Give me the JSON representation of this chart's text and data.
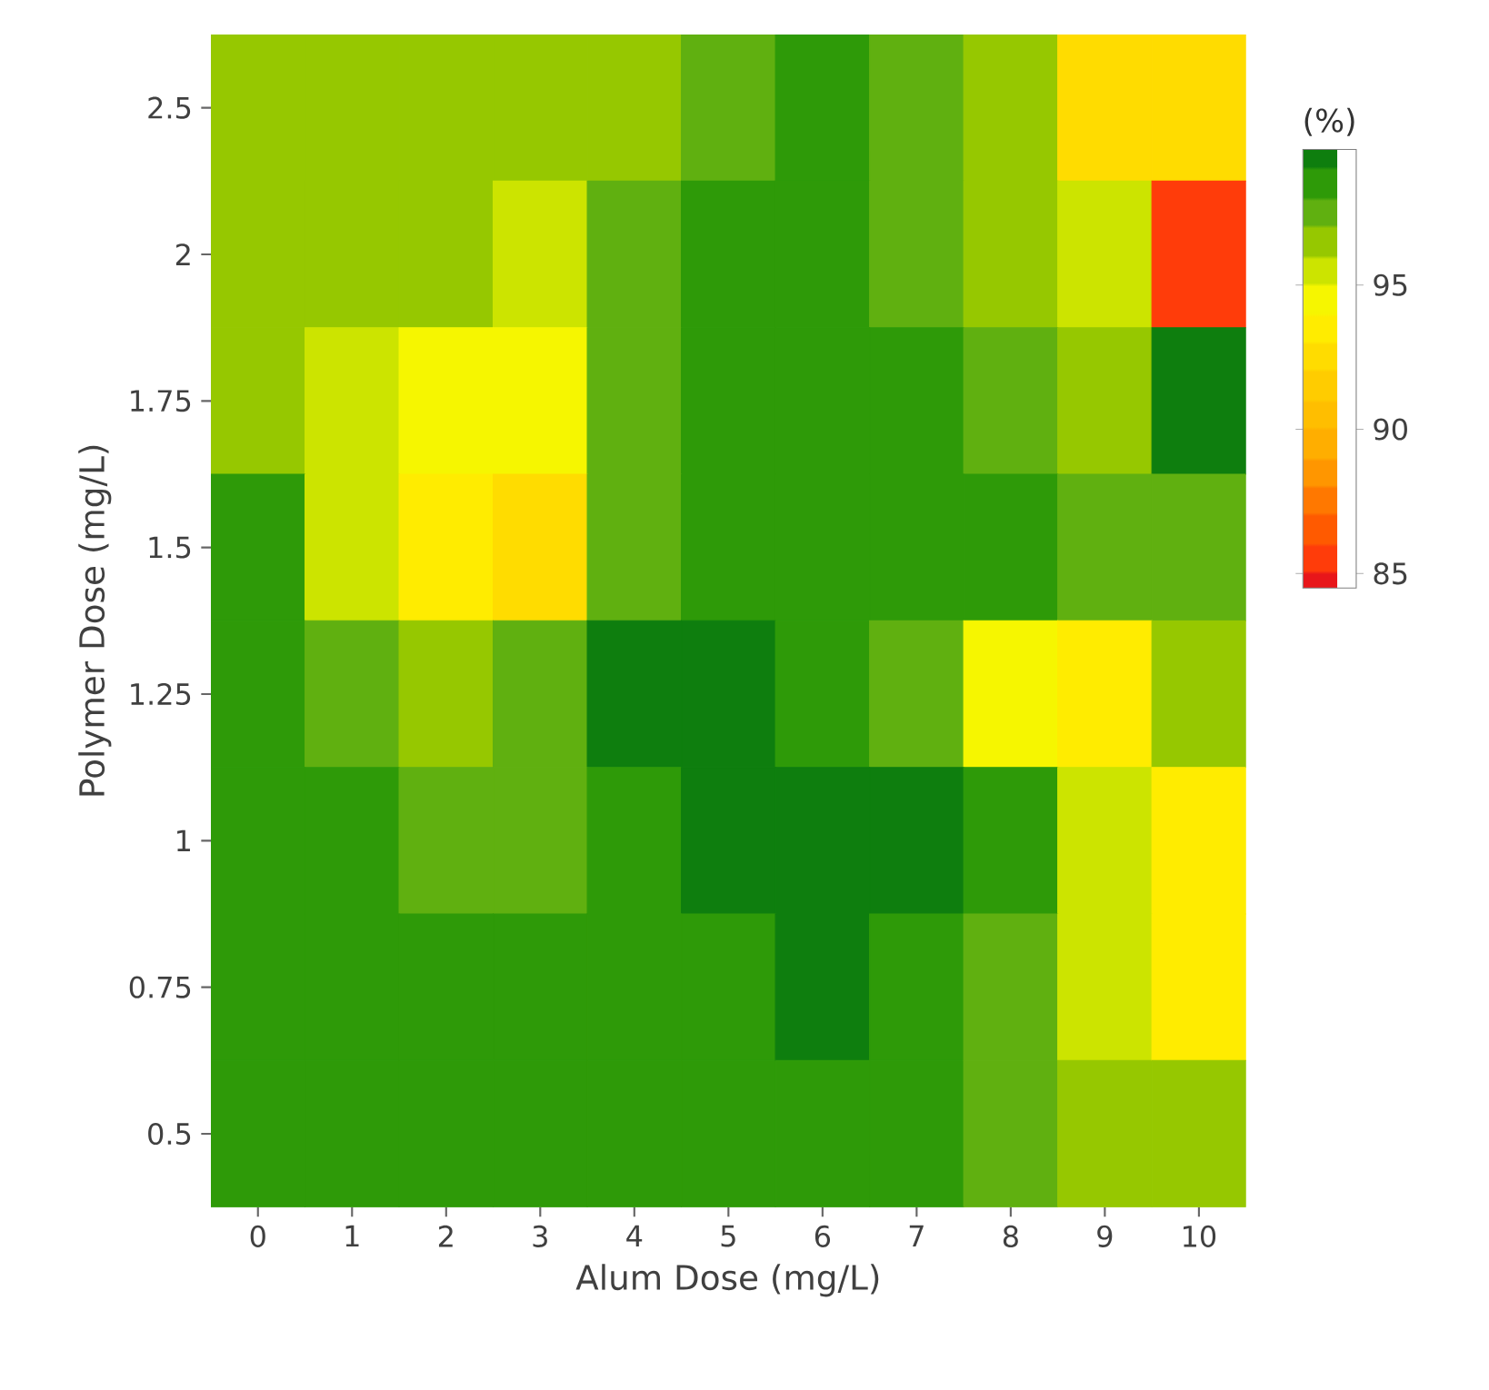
{
  "chart_data": {
    "type": "heatmap",
    "xlabel": "Alum Dose (mg/L)",
    "ylabel": "Polymer Dose (mg/L)",
    "clabel": "(%)",
    "categories": [
      "0",
      "1",
      "2",
      "3",
      "4",
      "5",
      "6",
      "7",
      "8",
      "9",
      "10"
    ],
    "y_categories": [
      "2.5",
      "2",
      "1.75",
      "1.5",
      "1.25",
      "1",
      "0.75",
      "0.5"
    ],
    "cells": [
      [
        96.5,
        96.5,
        96.5,
        96.5,
        96.5,
        97.5,
        98.5,
        97.5,
        96.5,
        92.5,
        92.5
      ],
      [
        96.5,
        96.5,
        96.5,
        95.5,
        97.5,
        98.5,
        98.5,
        97.5,
        96.5,
        95.5,
        85
      ],
      [
        96.5,
        95.5,
        94.5,
        94.5,
        97.5,
        98.5,
        98.5,
        98.5,
        97.5,
        96.5,
        99.3
      ],
      [
        98.5,
        95.5,
        93.5,
        92.5,
        97.5,
        98.5,
        98.5,
        98.5,
        98.5,
        97.5,
        97.5
      ],
      [
        98.5,
        97.5,
        96.5,
        97.5,
        99.3,
        99.3,
        98.5,
        97.5,
        94.5,
        93.5,
        96.5
      ],
      [
        98.5,
        98.5,
        97.5,
        97.5,
        98.5,
        99.3,
        99.3,
        99.3,
        98.5,
        95.5,
        93.5
      ],
      [
        98.5,
        98.5,
        98.5,
        98.5,
        98.5,
        98.5,
        99.3,
        98.5,
        97.5,
        95.5,
        93.5
      ],
      [
        98.5,
        98.5,
        98.5,
        98.5,
        98.5,
        98.5,
        98.5,
        98.5,
        97.5,
        96.5,
        96.5
      ]
    ],
    "clim": [
      84.5,
      99.7
    ],
    "cticks": [
      85,
      90,
      95
    ]
  }
}
